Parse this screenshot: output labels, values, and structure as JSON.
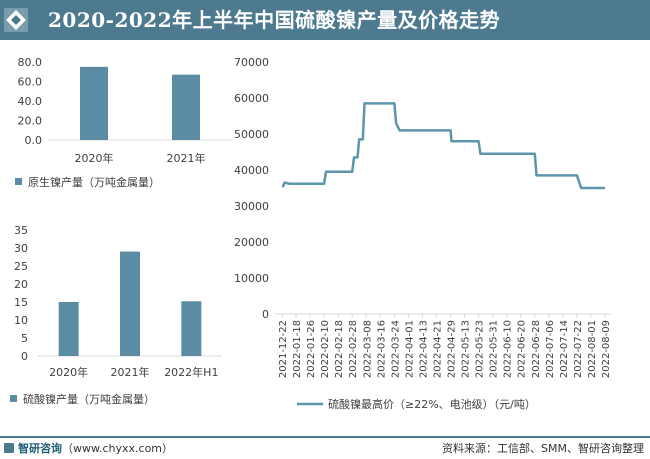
{
  "title": "2020-2022年上半年中国硫酸镍产量及价格走势",
  "footer": {
    "brand": "智研咨询",
    "url_text": "（www.chyxx.com）",
    "source": "资料来源：工信部、SMM、智研咨询整理"
  },
  "colors": {
    "header": "#4d7a8f",
    "bar": "#5b8ca3",
    "line": "#5b96ad",
    "axis": "#d9d9d9"
  },
  "chart_data": [
    {
      "type": "bar",
      "categories": [
        "2020年",
        "2021年"
      ],
      "values": [
        7.5,
        6.7
      ],
      "legend": "原生镍产量（万吨金属量）",
      "ylim": [
        0,
        8
      ],
      "ytick_labels": [
        "0.0",
        "20.0",
        "40.0",
        "60.0",
        "80.0"
      ]
    },
    {
      "type": "bar",
      "categories": [
        "2020年",
        "2021年",
        "2022年H1"
      ],
      "values": [
        15,
        29,
        15.2
      ],
      "legend": "硫酸镍产量（万吨金属量）",
      "ylim": [
        0,
        35
      ],
      "yticks": [
        0,
        5,
        10,
        15,
        20,
        25,
        30,
        35
      ]
    },
    {
      "type": "line",
      "legend": "硫酸镍最高价（≥22%、电池级）（元/吨）",
      "ylim": [
        0,
        70000
      ],
      "yticks": [
        0,
        10000,
        20000,
        30000,
        40000,
        50000,
        60000,
        70000
      ],
      "categories": [
        "2021-12-22",
        "2022-01-18",
        "2022-01-26",
        "2022-02-10",
        "2022-02-18",
        "2022-02-28",
        "2022-03-08",
        "2022-03-16",
        "2022-03-24",
        "2022-04-01",
        "2022-04-13",
        "2022-04-21",
        "2022-04-29",
        "2022-05-13",
        "2022-05-23",
        "2022-05-31",
        "2022-06-10",
        "2022-06-20",
        "2022-06-28",
        "2022-07-06",
        "2022-07-14",
        "2022-07-22",
        "2022-08-01",
        "2022-08-09"
      ],
      "series": [
        {
          "x": [
            "2021-12-22",
            "2022-01-18",
            "2022-01-26",
            "2022-02-10",
            "2022-02-18",
            "2022-02-28",
            "2022-03-08",
            "2022-03-16",
            "2022-03-24",
            "2022-04-01",
            "2022-04-13",
            "2022-04-21",
            "2022-04-29",
            "2022-05-13",
            "2022-05-23",
            "2022-05-31",
            "2022-06-10",
            "2022-06-20",
            "2022-06-28",
            "2022-07-06",
            "2022-07-14",
            "2022-07-22",
            "2022-08-01",
            "2022-08-09"
          ],
          "points": [
            [
              "2021-12-22",
              35500
            ],
            [
              "2021-12-24",
              35500
            ],
            [
              "2021-12-27",
              36500
            ],
            [
              "2022-01-05",
              36200
            ],
            [
              "2022-01-18",
              36200
            ],
            [
              "2022-02-10",
              36200
            ],
            [
              "2022-02-11",
              39500
            ],
            [
              "2022-02-28",
              39500
            ],
            [
              "2022-03-01",
              43500
            ],
            [
              "2022-03-03",
              43500
            ],
            [
              "2022-03-04",
              48500
            ],
            [
              "2022-03-06",
              48500
            ],
            [
              "2022-03-07",
              58500
            ],
            [
              "2022-03-24",
              58500
            ],
            [
              "2022-03-25",
              53000
            ],
            [
              "2022-03-27",
              51000
            ],
            [
              "2022-04-01",
              51000
            ],
            [
              "2022-04-29",
              51000
            ],
            [
              "2022-04-30",
              48000
            ],
            [
              "2022-05-23",
              48000
            ],
            [
              "2022-05-24",
              44500
            ],
            [
              "2022-06-28",
              44500
            ],
            [
              "2022-06-29",
              38500
            ],
            [
              "2022-07-14",
              38500
            ],
            [
              "2022-07-22",
              38500
            ],
            [
              "2022-07-25",
              35000
            ],
            [
              "2022-08-09",
              35000
            ]
          ]
        }
      ]
    }
  ]
}
